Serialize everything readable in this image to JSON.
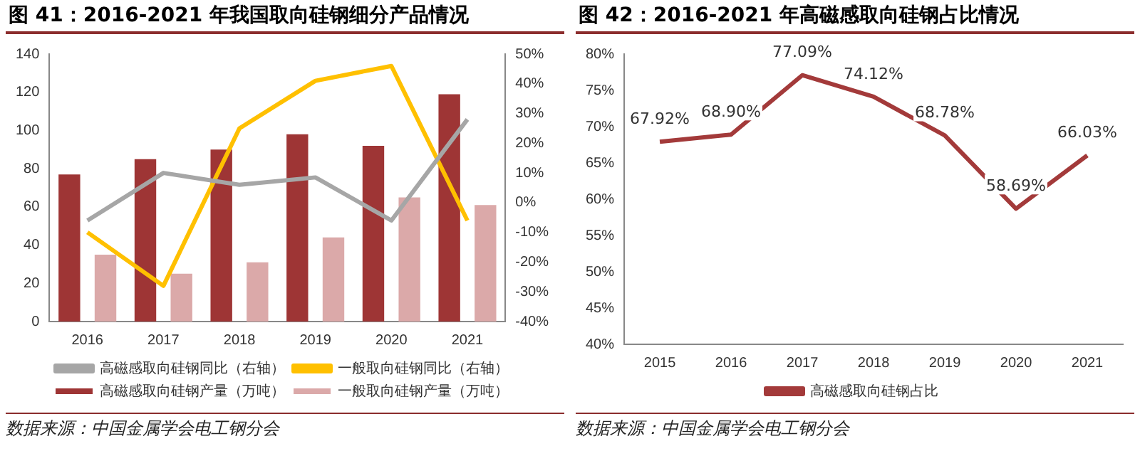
{
  "chart_data": [
    {
      "type": "bar",
      "title": "图 41：2016-2021 年我国取向硅钢细分产品情况",
      "categories": [
        "2016",
        "2017",
        "2018",
        "2019",
        "2020",
        "2021"
      ],
      "series": [
        {
          "name": "高磁感取向硅钢产量（万吨）",
          "color": "#9e3535",
          "values": [
            77,
            85,
            90,
            98,
            92,
            119
          ]
        },
        {
          "name": "一般取向硅钢产量（万吨）",
          "color": "#dba9a9",
          "values": [
            35,
            25,
            31,
            44,
            65,
            61
          ]
        },
        {
          "name": "高磁感取向硅钢同比（右轴）",
          "type": "line",
          "axis": "y2",
          "color": "#a6a6a6",
          "values": [
            -6,
            10,
            6,
            8.5,
            -6,
            28
          ]
        },
        {
          "name": "一般取向硅钢同比（右轴）",
          "type": "line",
          "axis": "y2",
          "color": "#ffc000",
          "values": [
            -10,
            -28,
            25,
            41,
            46,
            -6
          ]
        }
      ],
      "ylim": [
        0,
        140
      ],
      "yticks": [
        0,
        20,
        40,
        60,
        80,
        100,
        120,
        140
      ],
      "y2lim": [
        -40,
        50
      ],
      "y2ticks": [
        {
          "value": -40,
          "label": "-40%"
        },
        {
          "value": -30,
          "label": "-30%"
        },
        {
          "value": -20,
          "label": "-20%"
        },
        {
          "value": -10,
          "label": "-10%"
        },
        {
          "value": 0,
          "label": "0%"
        },
        {
          "value": 10,
          "label": "10%"
        },
        {
          "value": 20,
          "label": "20%"
        },
        {
          "value": 30,
          "label": "30%"
        },
        {
          "value": 40,
          "label": "40%"
        },
        {
          "value": 50,
          "label": "50%"
        }
      ],
      "grid": false,
      "legend": "bottom",
      "marker": "none",
      "annotations": [
        "数据来源：中国金属学会电工钢分会"
      ]
    },
    {
      "type": "line",
      "title": "图 42：2016-2021 年高磁感取向硅钢占比情况",
      "categories": [
        "2015",
        "2016",
        "2017",
        "2018",
        "2019",
        "2020",
        "2021"
      ],
      "series": [
        {
          "name": "高磁感取向硅钢占比",
          "color": "#a33a3a",
          "values": [
            67.92,
            68.9,
            77.09,
            74.12,
            68.78,
            58.69,
            66.03
          ],
          "value_labels": [
            "67.92%",
            "68.90%",
            "77.09%",
            "74.12%",
            "68.78%",
            "58.69%",
            "66.03%"
          ]
        }
      ],
      "ylim": [
        40,
        80
      ],
      "yticks": [
        {
          "value": 40,
          "label": "40%"
        },
        {
          "value": 45,
          "label": "45%"
        },
        {
          "value": 50,
          "label": "50%"
        },
        {
          "value": 55,
          "label": "55%"
        },
        {
          "value": 60,
          "label": "60%"
        },
        {
          "value": 65,
          "label": "65%"
        },
        {
          "value": 70,
          "label": "70%"
        },
        {
          "value": 75,
          "label": "75%"
        },
        {
          "value": 80,
          "label": "80%"
        }
      ],
      "grid": false,
      "legend": "bottom",
      "marker": "none",
      "annotations": [
        "数据来源：中国金属学会电工钢分会"
      ]
    }
  ]
}
